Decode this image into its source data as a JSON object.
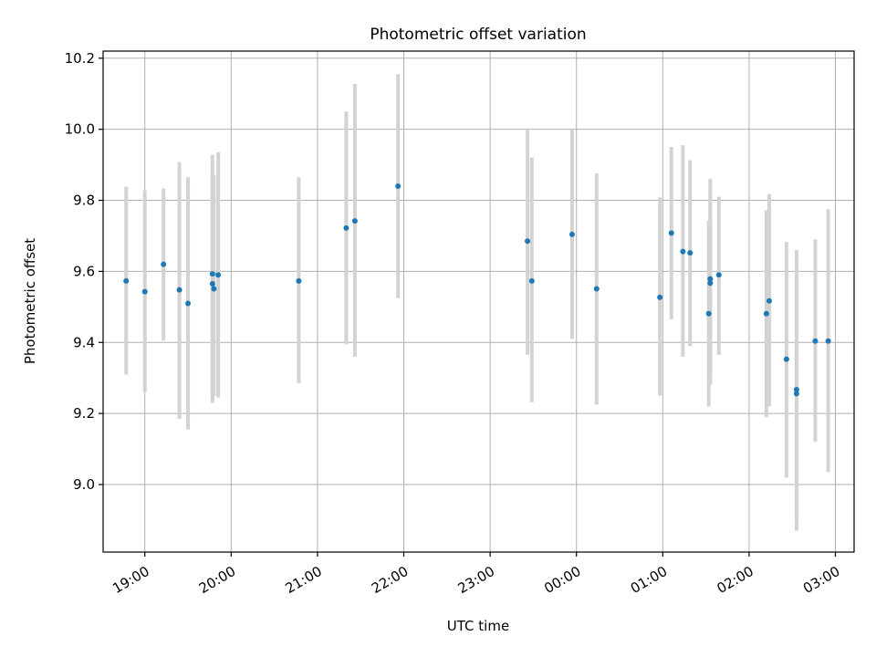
{
  "chart_data": {
    "type": "scatter",
    "title": "Photometric offset variation",
    "xlabel": "UTC time",
    "ylabel": "Photometric offset",
    "grid": true,
    "legend": "none",
    "x_is_time": true,
    "x_range": [
      "18:31",
      "03:13"
    ],
    "ylim": [
      8.81,
      10.22
    ],
    "x_ticks": [
      "19:00",
      "20:00",
      "21:00",
      "22:00",
      "23:00",
      "00:00",
      "01:00",
      "02:00",
      "03:00"
    ],
    "y_ticks": [
      "9.0",
      "9.2",
      "9.4",
      "9.6",
      "9.8",
      "10.0",
      "10.2"
    ],
    "colors": {
      "points": "#1f77b4",
      "errorbars": "#d3d3d3",
      "grid": "#b0b0b0"
    },
    "series": [
      {
        "x": [
          "18:47",
          "19:00",
          "19:13",
          "19:24",
          "19:30",
          "19:47",
          "19:47",
          "19:48",
          "19:51",
          "20:47",
          "21:20",
          "21:26",
          "21:56",
          "23:26",
          "23:29",
          "23:57",
          "00:14",
          "00:58",
          "01:06",
          "01:14",
          "01:19",
          "01:32",
          "01:33",
          "01:33",
          "01:39",
          "02:12",
          "02:14",
          "02:26",
          "02:33",
          "02:33",
          "02:46",
          "02:55"
        ],
        "y": [
          9.573,
          9.543,
          9.62,
          9.548,
          9.51,
          9.593,
          9.565,
          9.551,
          9.59,
          9.573,
          9.722,
          9.742,
          9.84,
          9.685,
          9.573,
          9.704,
          9.551,
          9.527,
          9.708,
          9.656,
          9.652,
          9.481,
          9.579,
          9.567,
          9.59,
          9.481,
          9.517,
          9.353,
          9.267,
          9.256,
          9.404,
          9.404
        ],
        "yerr_low": [
          9.31,
          9.26,
          9.405,
          9.185,
          9.155,
          9.23,
          9.24,
          9.25,
          9.245,
          9.285,
          9.395,
          9.36,
          9.525,
          9.365,
          9.232,
          9.41,
          9.225,
          9.25,
          9.465,
          9.36,
          9.39,
          9.22,
          9.28,
          9.3,
          9.365,
          9.19,
          9.22,
          9.02,
          8.87,
          8.9,
          9.12,
          9.035
        ],
        "yerr_high": [
          9.838,
          9.828,
          9.833,
          9.908,
          9.865,
          9.928,
          9.875,
          9.87,
          9.935,
          9.865,
          10.05,
          10.128,
          10.155,
          10.0,
          9.92,
          10.0,
          9.876,
          9.808,
          9.95,
          9.955,
          9.913,
          9.743,
          9.82,
          9.86,
          9.81,
          9.772,
          9.818,
          9.683,
          9.66,
          9.61,
          9.69,
          9.775
        ]
      }
    ]
  }
}
